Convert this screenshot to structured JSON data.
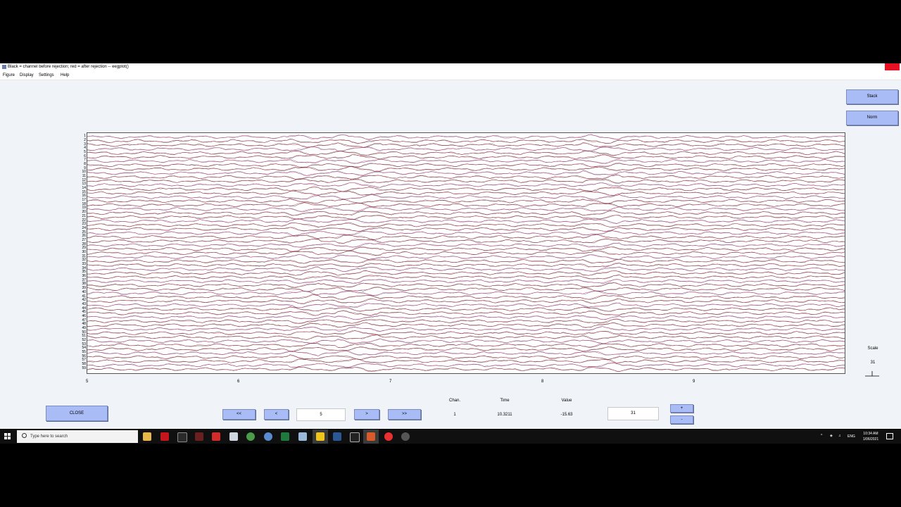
{
  "window": {
    "title": "Black = channel before rejection; red = after rejection -- eegplot()"
  },
  "menu": [
    "Figure",
    "Display",
    "Settings",
    "Help"
  ],
  "side_buttons": {
    "stack": "Stack",
    "norm": "Norm"
  },
  "plot": {
    "channels": [
      "1",
      "2",
      "3",
      "4",
      "5",
      "6",
      "7",
      "8",
      "9",
      "10",
      "11",
      "12",
      "13",
      "14",
      "15",
      "16",
      "17",
      "18",
      "19",
      "20",
      "21",
      "22",
      "23",
      "24",
      "25",
      "26",
      "27",
      "28",
      "29",
      "30",
      "31",
      "32",
      "33",
      "34",
      "35",
      "36",
      "37",
      "38",
      "39",
      "40",
      "41",
      "42",
      "43",
      "44",
      "45",
      "46",
      "47",
      "48",
      "49",
      "50",
      "51",
      "52",
      "53",
      "54",
      "55",
      "56",
      "57",
      "58",
      "59"
    ],
    "x_ticks": [
      "5",
      "6",
      "7",
      "8",
      "9"
    ],
    "colors": {
      "before": "#000000",
      "after": "#c8203c",
      "alt": "#2a2a8a"
    }
  },
  "scale": {
    "label": "Scale",
    "value": "31"
  },
  "controls": {
    "close": "CLOSE",
    "first": "<<",
    "prev": "<",
    "time_value": "5",
    "next": ">",
    "last": ">>",
    "chan_label": "Chan.",
    "chan_value": "1",
    "time_label": "Time",
    "time_readout": "10.3211",
    "value_label": "Value",
    "value_readout": "-15.63",
    "scale_input": "31",
    "plus": "+",
    "minus": "-"
  },
  "taskbar": {
    "search_placeholder": "Type here to search",
    "icons": [
      "file-explorer-icon",
      "pdf-reader-icon",
      "terminal-icon",
      "media-icon",
      "flash-icon",
      "drive-icon",
      "chrome-icon",
      "edge-icon",
      "excel-icon",
      "notes-icon",
      "sticky-notes-icon",
      "word-icon",
      "terminal2-icon",
      "matlab-icon",
      "opera-icon",
      "settings-icon"
    ],
    "lang": "ENG",
    "time": "10:34 AM",
    "date": "1/06/2021"
  }
}
